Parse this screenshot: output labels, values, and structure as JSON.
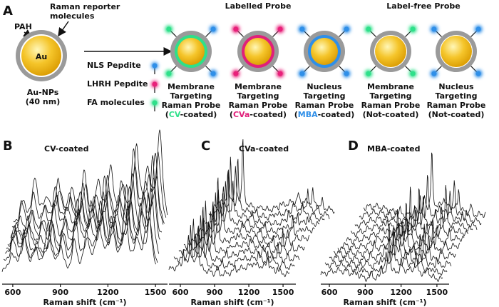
{
  "panel_a": {
    "label": "A",
    "shell_label": "PAH",
    "reporter_label": [
      "Raman reporter",
      "molecules"
    ],
    "core_label": "Au",
    "nanoparticle_caption": [
      "Au-NPs",
      "(40 nm)"
    ],
    "legend": [
      {
        "label": "NLS Pepdite",
        "color": "#2f8fe8"
      },
      {
        "label": "LHRH Pepdite",
        "color": "#e8207a"
      },
      {
        "label": "FA molecules",
        "color": "#2ee08a"
      }
    ],
    "group_titles": [
      "Labelled Probe",
      "Label-free Probe"
    ],
    "probes": [
      {
        "lines": [
          "Membrane",
          "Targeting",
          "Raman Probe"
        ],
        "ring_color": "#2ee08a",
        "coating": [
          {
            "text": "("
          },
          {
            "text": "CV",
            "color": "#2ee08a"
          },
          {
            "text": "-coated)"
          }
        ]
      },
      {
        "lines": [
          "Membrane",
          "Targeting",
          "Raman Probe"
        ],
        "ring_color": "#e0207a",
        "coating": [
          {
            "text": "("
          },
          {
            "text": "CVa",
            "color": "#e0207a"
          },
          {
            "text": "-coated)"
          }
        ]
      },
      {
        "lines": [
          "Nucleus",
          "Targeting",
          "Raman Probe"
        ],
        "ring_color": "#2f8fe8",
        "coating": [
          {
            "text": "("
          },
          {
            "text": "MBA",
            "color": "#2f8fe8"
          },
          {
            "text": "-coated)"
          }
        ]
      },
      {
        "lines": [
          "Membrane",
          "Targeting",
          "Raman Probe"
        ],
        "coating": [
          {
            "text": "(Not-coated)"
          }
        ]
      },
      {
        "lines": [
          "Nucleus",
          "Targeting",
          "Raman Probe"
        ],
        "coating": [
          {
            "text": "(Not-coated)"
          }
        ]
      }
    ]
  },
  "spectra": [
    {
      "label": "B",
      "title": "CV-coated",
      "x_label": "Raman shift (cm⁻¹)",
      "xlim": [
        533,
        1576
      ],
      "xticks": [
        600,
        900,
        1200,
        1500
      ]
    },
    {
      "label": "C",
      "title": "CVa-coated",
      "x_label": "Raman shift (cm⁻¹)",
      "xlim": [
        500,
        1612
      ],
      "xticks": [
        600,
        900,
        1200,
        1500
      ]
    },
    {
      "label": "D",
      "title": "MBA-coated",
      "x_label": "Raman shift (cm⁻¹)",
      "xlim": [
        528,
        1602
      ],
      "xticks": [
        600,
        900,
        1200,
        1500
      ]
    }
  ]
}
